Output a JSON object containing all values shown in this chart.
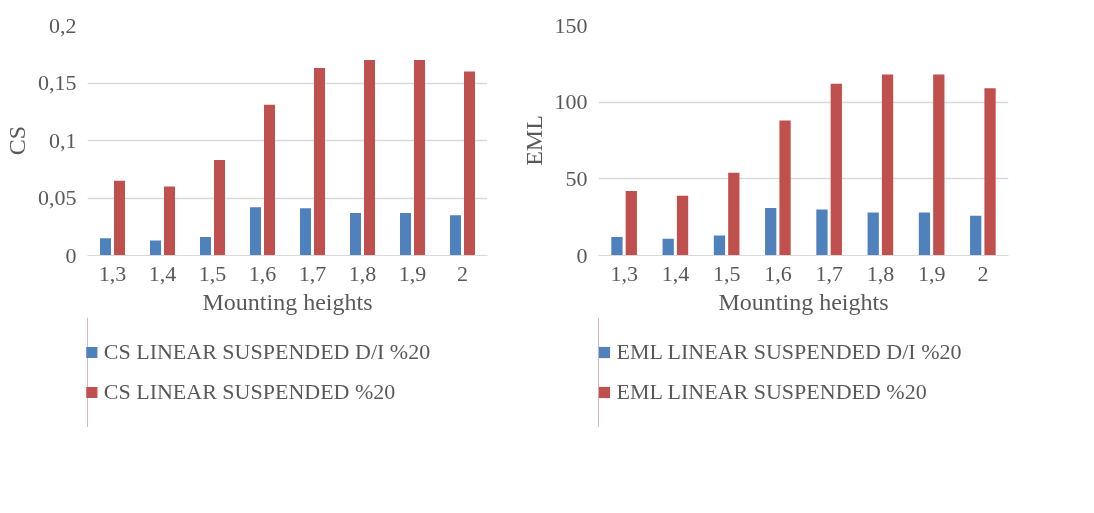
{
  "chart_data": [
    {
      "type": "bar",
      "ylabel": "CS",
      "xlabel": "Mounting heights",
      "categories": [
        "1,3",
        "1,4",
        "1,5",
        "1,6",
        "1,7",
        "1,8",
        "1,9",
        "2"
      ],
      "ylim": [
        0,
        0.2
      ],
      "yticks": [
        {
          "value": 0,
          "label": "0"
        },
        {
          "value": 0.05,
          "label": "0,05"
        },
        {
          "value": 0.1,
          "label": "0,1"
        },
        {
          "value": 0.15,
          "label": "0,15"
        },
        {
          "value": 0.2,
          "label": "0,2"
        }
      ],
      "grid": "y",
      "legend": "bottom",
      "series": [
        {
          "name": "CS LINEAR SUSPENDED D/I %20",
          "color": "#4f81bd",
          "values": [
            0.015,
            0.013,
            0.016,
            0.042,
            0.041,
            0.037,
            0.037,
            0.035
          ]
        },
        {
          "name": "CS LINEAR SUSPENDED %20",
          "color": "#c0504d",
          "values": [
            0.065,
            0.06,
            0.083,
            0.131,
            0.163,
            0.17,
            0.17,
            0.16
          ]
        }
      ]
    },
    {
      "type": "bar",
      "ylabel": "EML",
      "xlabel": "Mounting heights",
      "categories": [
        "1,3",
        "1,4",
        "1,5",
        "1,6",
        "1,7",
        "1,8",
        "1,9",
        "2"
      ],
      "ylim": [
        0,
        150
      ],
      "yticks": [
        0,
        50,
        100,
        150
      ],
      "grid": "y",
      "legend": "bottom",
      "series": [
        {
          "name": "EML LINEAR SUSPENDED D/I %20",
          "color": "#4f81bd",
          "values": [
            12,
            11,
            13,
            31,
            30,
            28,
            28,
            26
          ]
        },
        {
          "name": "EML LINEAR SUSPENDED %20",
          "color": "#c0504d",
          "values": [
            42,
            39,
            54,
            88,
            112,
            118,
            118,
            109
          ]
        }
      ]
    }
  ]
}
